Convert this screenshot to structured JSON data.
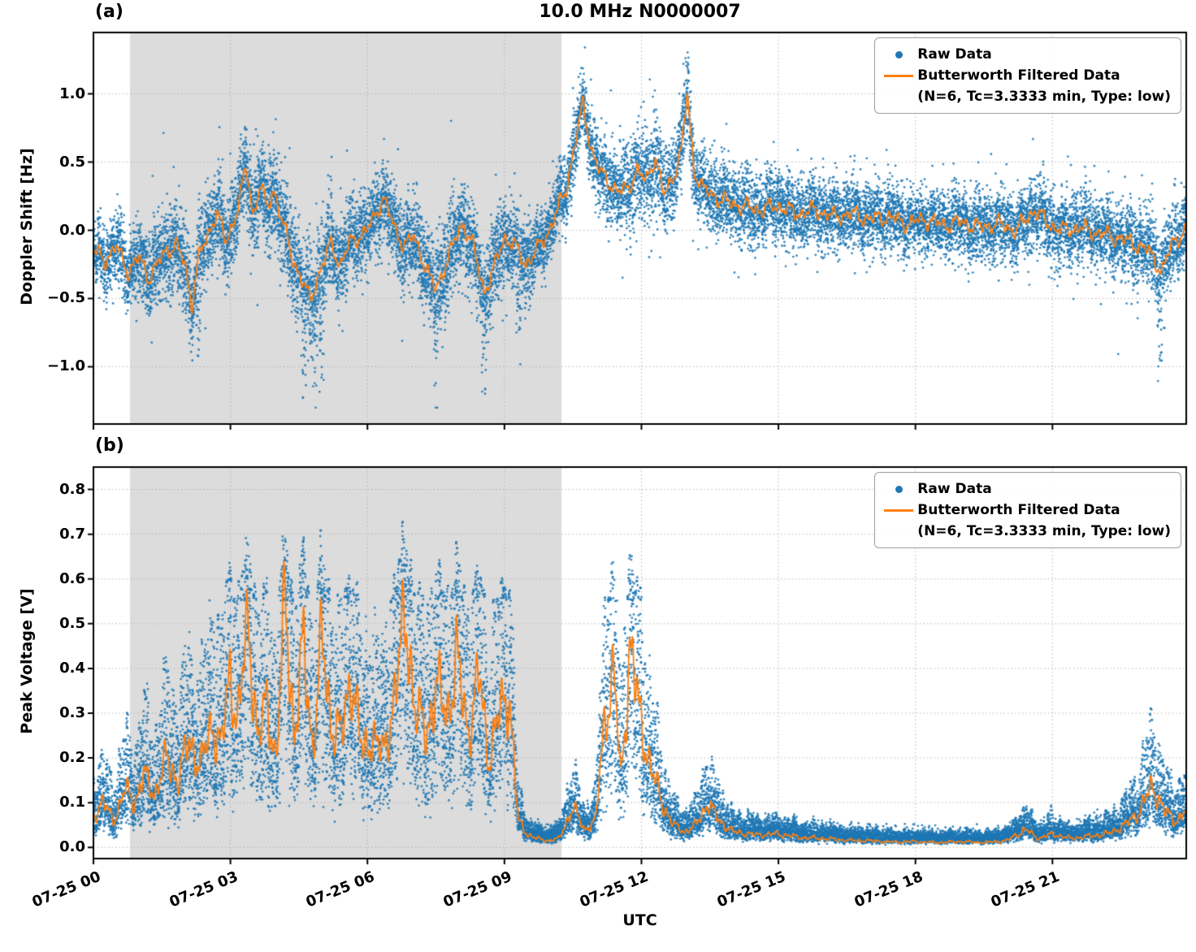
{
  "figure": {
    "title": "10.0 MHz N0000007",
    "xlabel": "UTC",
    "colors": {
      "raw": "#1f77b4",
      "filtered": "#ff7f0e",
      "shade": "#dcdcdc",
      "grid": "#b5b5b5",
      "spine": "#000000"
    },
    "legend": {
      "raw_label": "Raw Data",
      "filtered_line1": "Butterworth Filtered Data",
      "filtered_line2": "(N=6, Tc=3.3333 min, Type: low)"
    }
  },
  "chart_data": [
    {
      "panel_label": "(a)",
      "type": "scatter",
      "title": "10.0 MHz N0000007",
      "ylabel": "Doppler Shift [Hz]",
      "xlabel": "",
      "ylim": [
        -1.42,
        1.45
      ],
      "yticks": [
        -1.0,
        -0.5,
        0.0,
        0.5,
        1.0
      ],
      "ytick_labels": [
        "−1.0",
        "−0.5",
        "0.0",
        "0.5",
        "1.0"
      ],
      "xlim_hours": [
        0,
        23.93
      ],
      "xticks_hours": [
        0,
        3,
        6,
        9,
        12,
        15,
        18,
        21
      ],
      "xtick_labels": [],
      "grid": "dotted",
      "legend_position": "upper right",
      "shade_hours": [
        0.8,
        10.25
      ],
      "series": [
        {
          "name": "Raw Data",
          "style": "scatter",
          "color": "#1f77b4",
          "n_points": 18000,
          "noise_sigma_keypoints": {
            "t": [
              0,
              0.8,
              1.5,
              2.3,
              3.0,
              3.5,
              4.2,
              4.8,
              5.5,
              6.2,
              7.0,
              7.6,
              8.3,
              8.8,
              9.3,
              9.8,
              10.3,
              10.8,
              11.5,
              12.2,
              13.0,
              13.6,
              14.5,
              16.0,
              18.0,
              20.0,
              21.5,
              22.5,
              23.3,
              23.93
            ],
            "sigma": [
              0.11,
              0.13,
              0.15,
              0.17,
              0.14,
              0.15,
              0.17,
              0.19,
              0.15,
              0.13,
              0.15,
              0.17,
              0.16,
              0.17,
              0.15,
              0.12,
              0.12,
              0.13,
              0.15,
              0.17,
              0.15,
              0.13,
              0.13,
              0.12,
              0.12,
              0.12,
              0.13,
              0.13,
              0.15,
              0.13
            ]
          },
          "deep_spike_hours": [
            2.3,
            4.62,
            4.85,
            5.0,
            7.5,
            8.55,
            9.3,
            23.35
          ]
        },
        {
          "name": "Butterworth Filtered Data (N=6, Tc=3.3333 min, Type: low)",
          "style": "line",
          "color": "#ff7f0e",
          "keypoints": {
            "t": [
              0.0,
              0.25,
              0.5,
              0.75,
              1.0,
              1.2,
              1.4,
              1.6,
              1.8,
              2.0,
              2.15,
              2.3,
              2.5,
              2.7,
              2.9,
              3.1,
              3.35,
              3.5,
              3.65,
              3.8,
              3.95,
              4.15,
              4.35,
              4.55,
              4.75,
              4.95,
              5.2,
              5.4,
              5.6,
              5.8,
              6.1,
              6.35,
              6.6,
              6.8,
              7.0,
              7.2,
              7.5,
              7.7,
              7.95,
              8.1,
              8.3,
              8.55,
              8.75,
              9.0,
              9.2,
              9.45,
              9.7,
              9.9,
              10.1,
              10.35,
              10.55,
              10.72,
              10.9,
              11.1,
              11.3,
              11.5,
              11.7,
              11.9,
              12.1,
              12.3,
              12.5,
              12.7,
              12.88,
              13.0,
              13.15,
              13.35,
              13.6,
              13.9,
              14.2,
              14.6,
              15.0,
              15.4,
              15.8,
              16.2,
              16.6,
              17.0,
              17.4,
              17.8,
              18.2,
              18.6,
              19.0,
              19.4,
              19.8,
              20.2,
              20.6,
              20.9,
              21.2,
              21.6,
              22.0,
              22.4,
              22.8,
              23.1,
              23.4,
              23.65,
              23.93
            ],
            "v": [
              -0.15,
              -0.22,
              -0.12,
              -0.3,
              -0.2,
              -0.35,
              -0.25,
              -0.15,
              -0.1,
              -0.25,
              -0.55,
              -0.2,
              -0.05,
              0.15,
              -0.1,
              0.1,
              0.45,
              0.1,
              0.35,
              0.15,
              0.3,
              0.05,
              -0.2,
              -0.35,
              -0.52,
              -0.3,
              -0.1,
              -0.25,
              -0.1,
              -0.05,
              0.05,
              0.25,
              0.0,
              -0.1,
              -0.05,
              -0.2,
              -0.45,
              -0.25,
              -0.05,
              0.05,
              -0.1,
              -0.45,
              -0.3,
              -0.05,
              -0.1,
              -0.25,
              -0.15,
              -0.05,
              0.1,
              0.3,
              0.65,
              0.92,
              0.6,
              0.42,
              0.35,
              0.28,
              0.3,
              0.45,
              0.35,
              0.55,
              0.25,
              0.4,
              0.6,
              1.0,
              0.45,
              0.3,
              0.25,
              0.2,
              0.18,
              0.15,
              0.18,
              0.12,
              0.15,
              0.1,
              0.12,
              0.08,
              0.1,
              0.05,
              0.08,
              0.04,
              0.06,
              0.02,
              0.05,
              0.0,
              0.15,
              0.05,
              0.0,
              0.02,
              -0.02,
              -0.05,
              -0.1,
              -0.15,
              -0.3,
              -0.08,
              0.0
            ]
          }
        }
      ]
    },
    {
      "panel_label": "(b)",
      "type": "scatter",
      "title": "",
      "ylabel": "Peak Voltage [V]",
      "xlabel": "UTC",
      "ylim": [
        -0.025,
        0.85
      ],
      "yticks": [
        0.0,
        0.1,
        0.2,
        0.3,
        0.4,
        0.5,
        0.6,
        0.7,
        0.8
      ],
      "ytick_labels": [
        "0.0",
        "0.1",
        "0.2",
        "0.3",
        "0.4",
        "0.5",
        "0.6",
        "0.7",
        "0.8"
      ],
      "xlim_hours": [
        0,
        23.93
      ],
      "xticks_hours": [
        0,
        3,
        6,
        9,
        12,
        15,
        18,
        21
      ],
      "xtick_labels": [
        "07-25 00",
        "07-25 03",
        "07-25 06",
        "07-25 09",
        "07-25 12",
        "07-25 15",
        "07-25 18",
        "07-25 21"
      ],
      "grid": "dotted",
      "legend_position": "upper right",
      "shade_hours": [
        0.8,
        10.25
      ],
      "series": [
        {
          "name": "Raw Data",
          "style": "scatter",
          "color": "#1f77b4",
          "n_points": 18000,
          "noise_model": {
            "lognorm_sigma": 0.48,
            "factor_clamp": [
              0.1,
              1.9
            ],
            "additive": 0.009
          }
        },
        {
          "name": "Butterworth Filtered Data (N=6, Tc=3.3333 min, Type: low)",
          "style": "line",
          "color": "#ff7f0e",
          "keypoints": {
            "t": [
              0.0,
              0.2,
              0.45,
              0.7,
              0.9,
              1.1,
              1.35,
              1.6,
              1.85,
              2.1,
              2.35,
              2.6,
              2.8,
              3.0,
              3.15,
              3.4,
              3.6,
              3.8,
              4.0,
              4.2,
              4.4,
              4.6,
              4.8,
              5.0,
              5.2,
              5.45,
              5.65,
              5.9,
              6.1,
              6.35,
              6.6,
              6.85,
              7.05,
              7.3,
              7.5,
              7.75,
              7.95,
              8.2,
              8.45,
              8.65,
              8.9,
              9.1,
              9.3,
              9.5,
              9.7,
              9.95,
              10.2,
              10.5,
              10.75,
              11.0,
              11.2,
              11.4,
              11.55,
              11.75,
              11.95,
              12.2,
              12.45,
              12.7,
              12.95,
              13.2,
              13.45,
              13.7,
              14.0,
              14.5,
              15.0,
              15.5,
              16.0,
              16.5,
              17.0,
              17.5,
              18.0,
              18.5,
              19.0,
              19.5,
              20.0,
              20.4,
              20.7,
              21.0,
              21.4,
              21.8,
              22.2,
              22.6,
              22.9,
              23.2,
              23.45,
              23.7,
              23.93
            ],
            "v": [
              0.07,
              0.1,
              0.06,
              0.13,
              0.1,
              0.16,
              0.12,
              0.2,
              0.15,
              0.24,
              0.18,
              0.28,
              0.22,
              0.4,
              0.28,
              0.5,
              0.24,
              0.32,
              0.2,
              0.55,
              0.25,
              0.45,
              0.22,
              0.46,
              0.28,
              0.25,
              0.4,
              0.2,
              0.26,
              0.2,
              0.35,
              0.52,
              0.3,
              0.26,
              0.36,
              0.3,
              0.42,
              0.26,
              0.38,
              0.2,
              0.3,
              0.35,
              0.06,
              0.03,
              0.02,
              0.015,
              0.02,
              0.09,
              0.04,
              0.06,
              0.3,
              0.38,
              0.15,
              0.45,
              0.3,
              0.18,
              0.1,
              0.05,
              0.035,
              0.05,
              0.1,
              0.06,
              0.035,
              0.028,
              0.03,
              0.022,
              0.02,
              0.016,
              0.015,
              0.012,
              0.013,
              0.011,
              0.013,
              0.011,
              0.015,
              0.04,
              0.02,
              0.03,
              0.02,
              0.025,
              0.03,
              0.05,
              0.08,
              0.14,
              0.08,
              0.06,
              0.08
            ]
          }
        }
      ]
    }
  ]
}
